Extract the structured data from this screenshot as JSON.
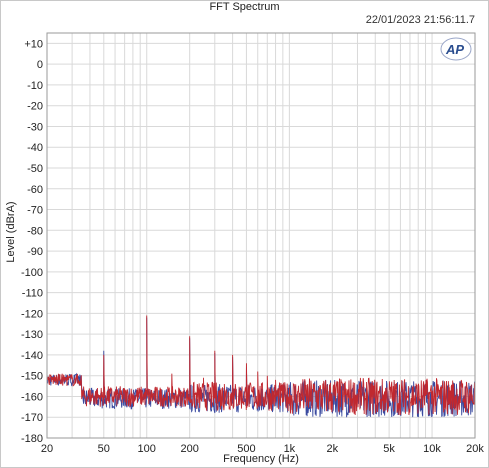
{
  "window": {
    "title": "FFT Spectrum",
    "timestamp": "22/01/2023 21:56:11.7"
  },
  "logo_text": "AP",
  "chart_data": {
    "type": "line",
    "xlabel": "Frequency (Hz)",
    "ylabel": "Level (dBrA)",
    "xscale": "log",
    "xlim": [
      20,
      20000
    ],
    "ylim": [
      -180,
      15
    ],
    "grid": true,
    "x_ticks": [
      {
        "value": 20,
        "label": "20"
      },
      {
        "value": 50,
        "label": "50"
      },
      {
        "value": 100,
        "label": "100"
      },
      {
        "value": 200,
        "label": "200"
      },
      {
        "value": 500,
        "label": "500"
      },
      {
        "value": 1000,
        "label": "1k"
      },
      {
        "value": 2000,
        "label": "2k"
      },
      {
        "value": 5000,
        "label": "5k"
      },
      {
        "value": 10000,
        "label": "10k"
      },
      {
        "value": 20000,
        "label": "20k"
      }
    ],
    "y_ticks": [
      {
        "value": 10,
        "label": "+10"
      },
      {
        "value": 0,
        "label": "0"
      },
      {
        "value": -10,
        "label": "-10"
      },
      {
        "value": -20,
        "label": "-20"
      },
      {
        "value": -30,
        "label": "-30"
      },
      {
        "value": -40,
        "label": "-40"
      },
      {
        "value": -50,
        "label": "-50"
      },
      {
        "value": -60,
        "label": "-60"
      },
      {
        "value": -70,
        "label": "-70"
      },
      {
        "value": -80,
        "label": "-80"
      },
      {
        "value": -90,
        "label": "-90"
      },
      {
        "value": -100,
        "label": "-100"
      },
      {
        "value": -110,
        "label": "-110"
      },
      {
        "value": -120,
        "label": "-120"
      },
      {
        "value": -130,
        "label": "-130"
      },
      {
        "value": -140,
        "label": "-140"
      },
      {
        "value": -150,
        "label": "-150"
      },
      {
        "value": -160,
        "label": "-160"
      },
      {
        "value": -170,
        "label": "-170"
      },
      {
        "value": -180,
        "label": "-180"
      }
    ],
    "series": [
      {
        "color": "#c0282f",
        "noise_floor_db": -160,
        "spurs": [
          {
            "x": 50,
            "y": -140
          },
          {
            "x": 100,
            "y": -121
          },
          {
            "x": 150,
            "y": -149
          },
          {
            "x": 200,
            "y": -131
          },
          {
            "x": 250,
            "y": -151
          },
          {
            "x": 300,
            "y": -138
          },
          {
            "x": 350,
            "y": -154
          },
          {
            "x": 400,
            "y": -140
          },
          {
            "x": 450,
            "y": -157
          },
          {
            "x": 500,
            "y": -144
          },
          {
            "x": 600,
            "y": -148
          },
          {
            "x": 700,
            "y": -150
          },
          {
            "x": 800,
            "y": -152
          },
          {
            "x": 900,
            "y": -154
          },
          {
            "x": 1000,
            "y": -156
          }
        ]
      },
      {
        "color": "#3a4aa0",
        "noise_floor_db": -161,
        "spurs": [
          {
            "x": 50,
            "y": -138
          },
          {
            "x": 100,
            "y": -122
          },
          {
            "x": 200,
            "y": -132
          },
          {
            "x": 300,
            "y": -139
          },
          {
            "x": 400,
            "y": -141
          },
          {
            "x": 500,
            "y": -146
          }
        ]
      }
    ]
  }
}
